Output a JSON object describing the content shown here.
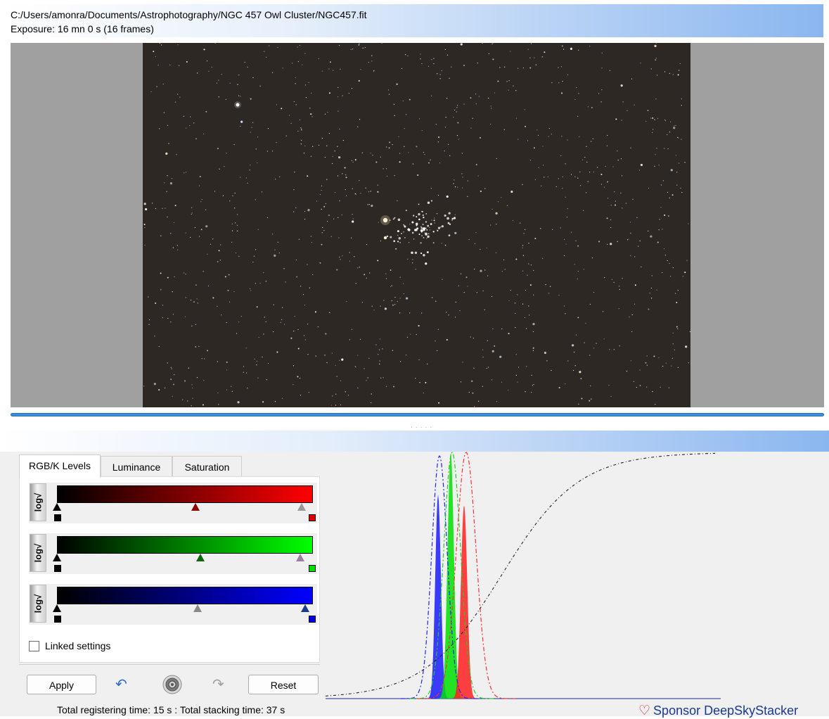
{
  "header": {
    "file_path": "C:/Users/amonra/Documents/Astrophotography/NGC 457 Owl Cluster/NGC457.fit",
    "exposure": "Exposure: 16 mn 0 s (16 frames)"
  },
  "tabs": [
    {
      "label": "RGB/K Levels",
      "active": true
    },
    {
      "label": "Luminance",
      "active": false
    },
    {
      "label": "Saturation",
      "active": false
    }
  ],
  "levels": [
    {
      "channel": "red",
      "log_label": "log√",
      "color_end": "#ff0000",
      "black_point": 0.0,
      "midtone": 0.54,
      "white_point": 0.955
    },
    {
      "channel": "green",
      "log_label": "log√",
      "color_end": "#00ff00",
      "black_point": 0.0,
      "midtone": 0.56,
      "white_point": 0.95
    },
    {
      "channel": "blue",
      "log_label": "log√",
      "color_end": "#0000ff",
      "black_point": 0.0,
      "midtone": 0.55,
      "white_point": 0.97
    }
  ],
  "linked_settings": {
    "label": "Linked settings",
    "checked": false
  },
  "buttons": {
    "apply": "Apply",
    "reset": "Reset",
    "undo_icon": "undo-icon",
    "settings_icon": "settings-icon",
    "redo_icon": "redo-icon"
  },
  "status": "Total registering time: 15 s  : Total stacking time: 37 s",
  "sponsor": "Sponsor DeepSkyStacker",
  "colors": {
    "accent": "#3b8fd6",
    "red": "#ff0000",
    "green": "#00ff00",
    "blue": "#0000ff"
  }
}
